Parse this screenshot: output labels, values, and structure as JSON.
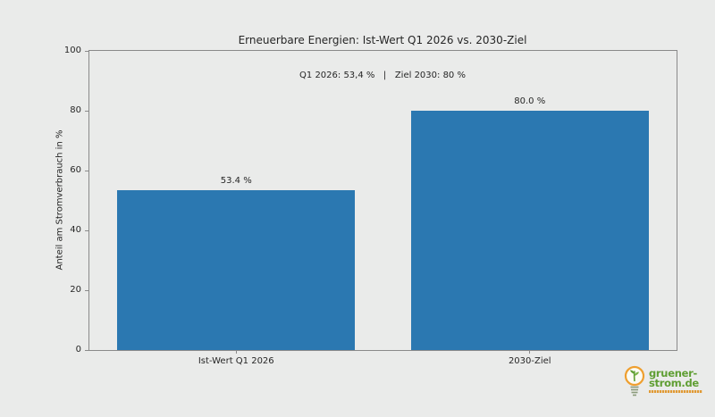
{
  "page": {
    "background": "#eaebea",
    "text_color": "#262626",
    "spine_color": "#8a8a8a"
  },
  "chart_data": {
    "type": "bar",
    "title": "Erneuerbare Energien: Ist-Wert Q1 2026 vs. 2030-Ziel",
    "annotation": "Q1 2026: 53,4 %   |   Ziel 2030: 80 %",
    "categories": [
      "Ist-Wert Q1 2026",
      "2030-Ziel"
    ],
    "values": [
      53.4,
      80.0
    ],
    "bar_labels": [
      "53.4 %",
      "80.0 %"
    ],
    "xlabel": "",
    "ylabel": "Anteil am Stromverbrauch in %",
    "ylim": [
      0,
      100
    ],
    "yticks": [
      0,
      20,
      40,
      60,
      80,
      100
    ],
    "grid": false,
    "legend": "none",
    "bar_color": "#2b78b1",
    "bar_width_fraction": 0.81
  },
  "logo": {
    "line1": "gruener-",
    "line2": "strom.de",
    "text_color": "#5f9e33",
    "accent_color": "#ef9f2f",
    "bulb_fill": "#fbfbf3"
  }
}
